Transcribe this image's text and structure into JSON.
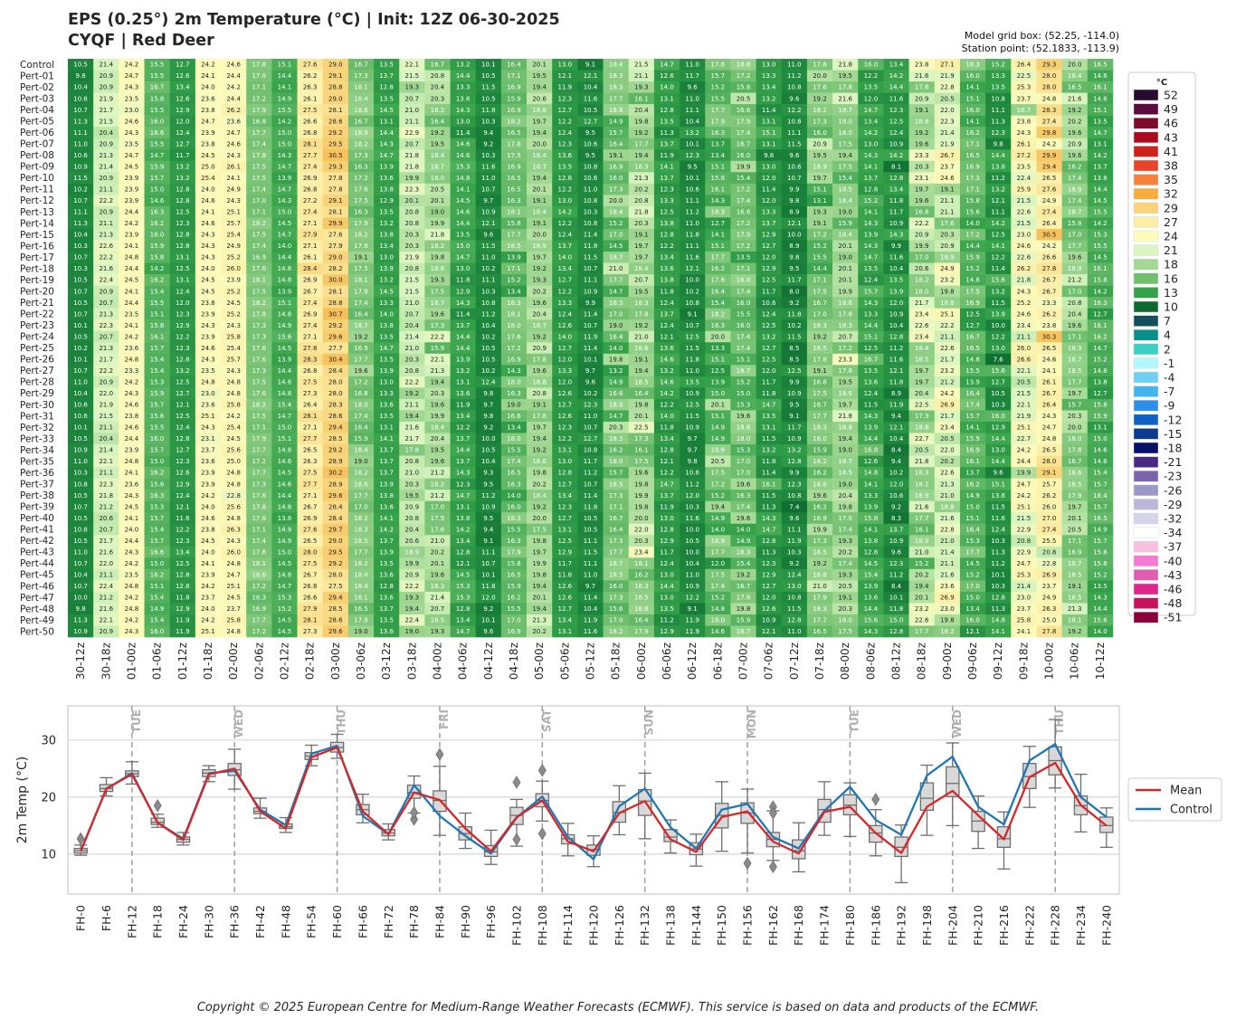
{
  "header": {
    "title_line1": "EPS (0.25°) 2m Temperature (°C) | Init: 12Z 06-30-2025",
    "title_line2": "CYQF | Red Deer",
    "grid_box": "Model grid box: (52.25, -114.0)",
    "station_point": "Station point: (52.1833, -113.9)"
  },
  "footer": {
    "copyright": "Copyright © 2025 European Centre for Medium-Range Weather Forecasts (ECMWF). This service is based on data and products of the ECMWF."
  },
  "chart_data": [
    {
      "type": "heatmap",
      "members": [
        "Control",
        "Pert-01",
        "Pert-02",
        "Pert-03",
        "Pert-04",
        "Pert-05",
        "Pert-06",
        "Pert-07",
        "Pert-08",
        "Pert-09",
        "Pert-10",
        "Pert-11",
        "Pert-12",
        "Pert-13",
        "Pert-14",
        "Pert-15",
        "Pert-16",
        "Pert-17",
        "Pert-18",
        "Pert-19",
        "Pert-20",
        "Pert-21",
        "Pert-22",
        "Pert-23",
        "Pert-24",
        "Pert-25",
        "Pert-26",
        "Pert-27",
        "Pert-28",
        "Pert-29",
        "Pert-30",
        "Pert-31",
        "Pert-32",
        "Pert-33",
        "Pert-34",
        "Pert-35",
        "Pert-36",
        "Pert-37",
        "Pert-38",
        "Pert-39",
        "Pert-40",
        "Pert-41",
        "Pert-42",
        "Pert-43",
        "Pert-44",
        "Pert-45",
        "Pert-46",
        "Pert-47",
        "Pert-48",
        "Pert-49",
        "Pert-50"
      ],
      "x_labels": [
        "30-12z",
        "30-18z",
        "01-00z",
        "01-06z",
        "01-12z",
        "01-18z",
        "02-00z",
        "02-06z",
        "02-12z",
        "02-18z",
        "03-00z",
        "03-06z",
        "03-12z",
        "03-18z",
        "04-00z",
        "04-06z",
        "04-12z",
        "04-18z",
        "05-00z",
        "05-06z",
        "05-12z",
        "05-18z",
        "06-00z",
        "06-06z",
        "06-12z",
        "06-18z",
        "07-00z",
        "07-06z",
        "07-12z",
        "07-18z",
        "08-00z",
        "08-06z",
        "08-12z",
        "08-18z",
        "09-00z",
        "09-06z",
        "09-12z",
        "09-18z",
        "10-00z",
        "10-06z",
        "10-12z"
      ],
      "legend_title": "°C",
      "legend_levels": [
        52,
        49,
        46,
        43,
        41,
        38,
        35,
        32,
        29,
        27,
        24,
        21,
        18,
        16,
        13,
        10,
        7,
        4,
        2,
        -1,
        -4,
        -7,
        -9,
        -12,
        -15,
        -18,
        -21,
        -23,
        -26,
        -29,
        -32,
        -34,
        -37,
        -40,
        -43,
        -46,
        -48,
        -51
      ],
      "legend_colors": [
        "#2a0a2e",
        "#5a0a3c",
        "#7d0a2b",
        "#a80d1f",
        "#d0201c",
        "#e8442a",
        "#f5823c",
        "#f7ad3c",
        "#f9d47a",
        "#fcefa8",
        "#fdfcbc",
        "#d9f5c0",
        "#a3d995",
        "#6fbf6e",
        "#35a24a",
        "#0d6b30",
        "#11505a",
        "#0a8f8a",
        "#3ccfc3",
        "#b3f7ff",
        "#6ed0f7",
        "#42b4f0",
        "#2c90e8",
        "#0f62c4",
        "#0b3b8f",
        "#05106b",
        "#4a2886",
        "#7b63ad",
        "#9b97c8",
        "#b9b8d9",
        "#d6d4e8",
        "#ffffff",
        "#f7c2e0",
        "#f47ad4",
        "#e05db0",
        "#e0258f",
        "#c7145c",
        "#8a0038"
      ],
      "mean_row": [
        10.5,
        21.5,
        24.0,
        15.5,
        12.5,
        24.0,
        25.0,
        17.5,
        14.5,
        27.0,
        28.7,
        17.5,
        13.5,
        20.8,
        19.5,
        14.5,
        10.5,
        16.5,
        19.4,
        12.2,
        10.5,
        17.2,
        19.3,
        12.6,
        10.4,
        16.5,
        17.5,
        12.2,
        10.1,
        17.4,
        18.3,
        13.7,
        10.2,
        18.3,
        21.1,
        16.8,
        12.6,
        23.5,
        26.0,
        18.6,
        15.0
      ],
      "control_row": [
        10.5,
        21.4,
        24.2,
        15.5,
        12.7,
        24.2,
        24.6,
        17.8,
        15.1,
        27.6,
        29.0,
        16.7,
        13.5,
        22.1,
        16.7,
        13.2,
        10.1,
        16.4,
        20.1,
        13.0,
        9.1,
        18.4,
        21.5,
        14.7,
        11.0,
        17.8,
        18.8,
        13.0,
        11.0,
        17.6,
        21.8,
        16.0,
        13.4,
        23.8,
        27.1,
        18.3,
        15.2,
        26.4,
        29.3,
        20.0,
        16.5
      ]
    },
    {
      "type": "box+line",
      "ylabel": "2m Temp (°C)",
      "yticks": [
        10,
        20,
        30
      ],
      "ylim": [
        3,
        36
      ],
      "categories": [
        "FH-0",
        "FH-6",
        "FH-12",
        "FH-18",
        "FH-24",
        "FH-30",
        "FH-36",
        "FH-42",
        "FH-48",
        "FH-54",
        "FH-60",
        "FH-66",
        "FH-72",
        "FH-78",
        "FH-84",
        "FH-90",
        "FH-96",
        "FH-102",
        "FH-108",
        "FH-114",
        "FH-120",
        "FH-126",
        "FH-132",
        "FH-138",
        "FH-144",
        "FH-150",
        "FH-156",
        "FH-162",
        "FH-168",
        "FH-174",
        "FH-180",
        "FH-186",
        "FH-192",
        "FH-198",
        "FH-204",
        "FH-210",
        "FH-216",
        "FH-222",
        "FH-228",
        "FH-234",
        "FH-240"
      ],
      "day_markers": [
        {
          "index": 2,
          "label": "TUE"
        },
        {
          "index": 6,
          "label": "WED"
        },
        {
          "index": 10,
          "label": "THU"
        },
        {
          "index": 14,
          "label": "FRI"
        },
        {
          "index": 18,
          "label": "SAT"
        },
        {
          "index": 22,
          "label": "SUN"
        },
        {
          "index": 26,
          "label": "MON"
        },
        {
          "index": 30,
          "label": "TUE"
        },
        {
          "index": 34,
          "label": "WED"
        },
        {
          "index": 38,
          "label": "THU"
        }
      ],
      "box": [
        [
          9.8,
          10.2,
          10.6,
          11.0,
          11.6
        ],
        [
          20.2,
          21.0,
          21.5,
          22.2,
          23.4
        ],
        [
          22.3,
          23.6,
          24.1,
          24.6,
          26.2
        ],
        [
          14.7,
          15.2,
          15.6,
          16.3,
          17.0
        ],
        [
          11.6,
          12.1,
          12.6,
          13.0,
          13.8
        ],
        [
          22.7,
          23.6,
          24.2,
          24.8,
          25.5
        ],
        [
          21.4,
          23.8,
          24.8,
          25.9,
          28.4
        ],
        [
          16.3,
          17.1,
          17.5,
          18.1,
          19.8
        ],
        [
          13.8,
          14.5,
          14.8,
          15.3,
          16.4
        ],
        [
          25.5,
          26.6,
          27.2,
          27.8,
          29.1
        ],
        [
          26.8,
          27.9,
          28.7,
          29.6,
          31.0
        ],
        [
          15.5,
          16.9,
          17.8,
          18.7,
          20.5
        ],
        [
          12.5,
          13.2,
          13.7,
          14.3,
          15.3
        ],
        [
          17.2,
          19.8,
          20.8,
          22.1,
          23.7
        ],
        [
          13.3,
          17.5,
          19.4,
          21.1,
          25.4
        ],
        [
          11.0,
          12.5,
          13.6,
          14.8,
          17.2
        ],
        [
          8.2,
          9.6,
          10.4,
          11.5,
          14.2
        ],
        [
          11.4,
          15.2,
          16.8,
          18.2,
          19.6
        ],
        [
          15.8,
          18.3,
          19.4,
          20.6,
          22.8
        ],
        [
          9.7,
          11.8,
          12.7,
          13.4,
          15.4
        ],
        [
          7.8,
          9.8,
          10.8,
          11.6,
          13.2
        ],
        [
          13.4,
          15.6,
          17.3,
          19.2,
          22.0
        ],
        [
          12.7,
          16.8,
          19.3,
          21.3,
          24.2
        ],
        [
          10.2,
          12.2,
          13.0,
          14.3,
          16.0
        ],
        [
          7.9,
          9.9,
          10.9,
          12.0,
          13.5
        ],
        [
          10.5,
          14.6,
          16.8,
          18.9,
          22.7
        ],
        [
          10.2,
          15.4,
          17.2,
          19.0,
          21.4
        ],
        [
          8.9,
          11.3,
          12.6,
          13.8,
          17.6
        ],
        [
          6.9,
          9.2,
          10.6,
          12.5,
          15.5
        ],
        [
          13.3,
          15.6,
          17.8,
          19.6,
          22.7
        ],
        [
          13.1,
          16.9,
          18.6,
          20.4,
          22.5
        ],
        [
          9.7,
          12.1,
          13.7,
          15.0,
          17.8
        ],
        [
          5.0,
          9.6,
          11.2,
          13.0,
          15.1
        ],
        [
          13.3,
          17.7,
          19.8,
          22.5,
          25.6
        ],
        [
          15.0,
          20.1,
          22.4,
          25.3,
          29.5
        ],
        [
          11.0,
          14.0,
          15.8,
          17.5,
          20.2
        ],
        [
          7.4,
          11.2,
          12.7,
          14.8,
          17.4
        ],
        [
          18.2,
          21.5,
          23.6,
          25.9,
          28.9
        ],
        [
          21.6,
          23.9,
          26.4,
          28.8,
          33.6
        ],
        [
          13.9,
          16.9,
          18.5,
          20.2,
          24.0
        ],
        [
          11.2,
          13.8,
          15.0,
          16.5,
          18.1
        ]
      ],
      "outliers": [
        {
          "index": 0,
          "value": 12.7
        },
        {
          "index": 3,
          "value": 18.5
        },
        {
          "index": 13,
          "value": 16.1
        },
        {
          "index": 13,
          "value": 17.3
        },
        {
          "index": 14,
          "value": 27.5
        },
        {
          "index": 17,
          "value": 12.6
        },
        {
          "index": 17,
          "value": 22.6
        },
        {
          "index": 18,
          "value": 13.6
        },
        {
          "index": 18,
          "value": 24.7
        },
        {
          "index": 26,
          "value": 8.4
        },
        {
          "index": 27,
          "value": 7.8
        },
        {
          "index": 27,
          "value": 18.3
        },
        {
          "index": 27,
          "value": 17.2
        },
        {
          "index": 31,
          "value": 19.6
        }
      ],
      "series": [
        {
          "name": "Mean",
          "color": "#d62728",
          "values": [
            10.5,
            21.5,
            24.0,
            15.5,
            12.5,
            24.0,
            25.0,
            17.5,
            14.5,
            27.0,
            28.7,
            17.5,
            13.5,
            20.8,
            19.5,
            14.5,
            10.5,
            16.5,
            19.4,
            12.2,
            10.5,
            17.2,
            19.3,
            12.6,
            10.4,
            16.5,
            17.5,
            12.2,
            10.1,
            17.4,
            18.3,
            13.7,
            10.2,
            18.3,
            21.1,
            16.8,
            12.6,
            23.5,
            26.0,
            18.6,
            15.0
          ]
        },
        {
          "name": "Control",
          "color": "#1f77b4",
          "values": [
            10.5,
            21.4,
            24.2,
            15.5,
            12.7,
            24.2,
            24.6,
            17.8,
            15.1,
            27.6,
            29.0,
            16.7,
            13.5,
            22.1,
            16.7,
            13.2,
            10.1,
            16.4,
            20.1,
            13.0,
            9.1,
            18.4,
            21.5,
            14.7,
            11.0,
            17.8,
            18.8,
            13.0,
            11.0,
            17.6,
            21.8,
            16.0,
            13.4,
            23.8,
            27.1,
            18.3,
            15.2,
            26.4,
            29.3,
            20.0,
            16.5
          ]
        }
      ],
      "legend_position": "right"
    }
  ]
}
